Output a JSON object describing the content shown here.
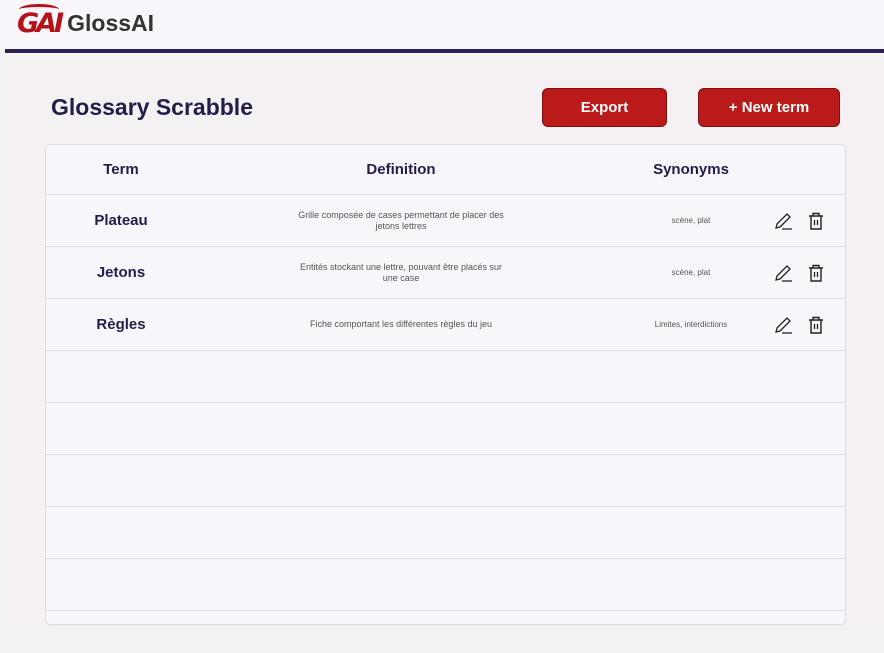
{
  "app": {
    "logo_mark": "GAI",
    "name": "GlossAI"
  },
  "page": {
    "title": "Glossary Scrabble",
    "export_label": "Export",
    "new_term_label": "+ New term"
  },
  "colors": {
    "accent": "#bb1a1a",
    "header_rule": "#2a2150",
    "title": "#241d4a"
  },
  "table": {
    "headers": {
      "term": "Term",
      "definition": "Definition",
      "synonyms": "Synonyms"
    },
    "rows": [
      {
        "term": "Plateau",
        "definition": "Grille composée de cases permettant de placer des jetons lettres",
        "synonyms": "scène, plat"
      },
      {
        "term": "Jetons",
        "definition": "Entités stockant une lettre, pouvant être placés sur une case",
        "synonyms": "scène, plat"
      },
      {
        "term": "Règles",
        "definition": "Fiche comportant les différentes règles du jeu",
        "synonyms": "Limites, interdictions"
      }
    ],
    "row_actions": [
      "edit-icon",
      "trash-icon"
    ]
  }
}
